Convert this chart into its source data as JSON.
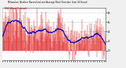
{
  "title": "Milwaukee Weather Normalized and Average Wind Direction (Last 24 Hours)",
  "subtitle": "NW Wind 5.4mph",
  "background_color": "#f0f0f0",
  "plot_bg_color": "#ffffff",
  "grid_color": "#aaaaaa",
  "bar_color": "#dd0000",
  "line_color": "#0000cc",
  "ylim": [
    -2,
    9
  ],
  "ytick_vals": [
    0,
    2,
    4,
    6,
    8
  ],
  "n_points": 288,
  "seed": 7
}
